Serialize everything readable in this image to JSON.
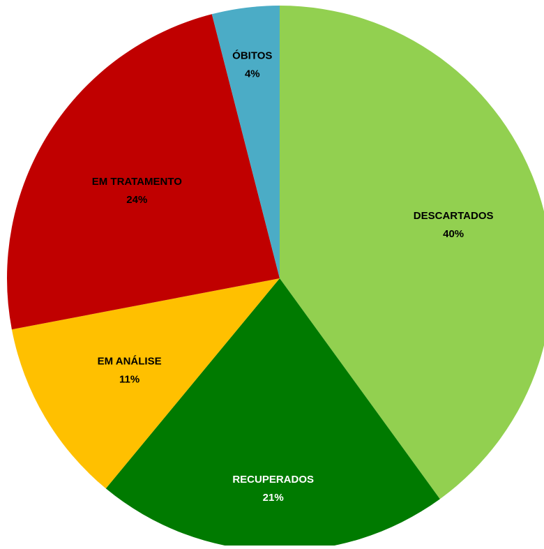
{
  "chart_data": {
    "type": "pie",
    "categories": [
      "DESCARTADOS",
      "RECUPERADOS",
      "EM ANÁLISE",
      "EM TRATAMENTO",
      "ÓBITOS"
    ],
    "values": [
      40,
      21,
      11,
      24,
      4
    ],
    "value_labels": [
      "40%",
      "21%",
      "11%",
      "24%",
      "4%"
    ],
    "unit": "%",
    "start": "top",
    "direction": "clockwise",
    "colors": [
      "#92d050",
      "#007a00",
      "#ffc000",
      "#c00000",
      "#4bacc6"
    ],
    "label_colors": [
      "#000000",
      "#ffffff",
      "#000000",
      "#000000",
      "#000000"
    ],
    "title": "",
    "legend": "none"
  }
}
